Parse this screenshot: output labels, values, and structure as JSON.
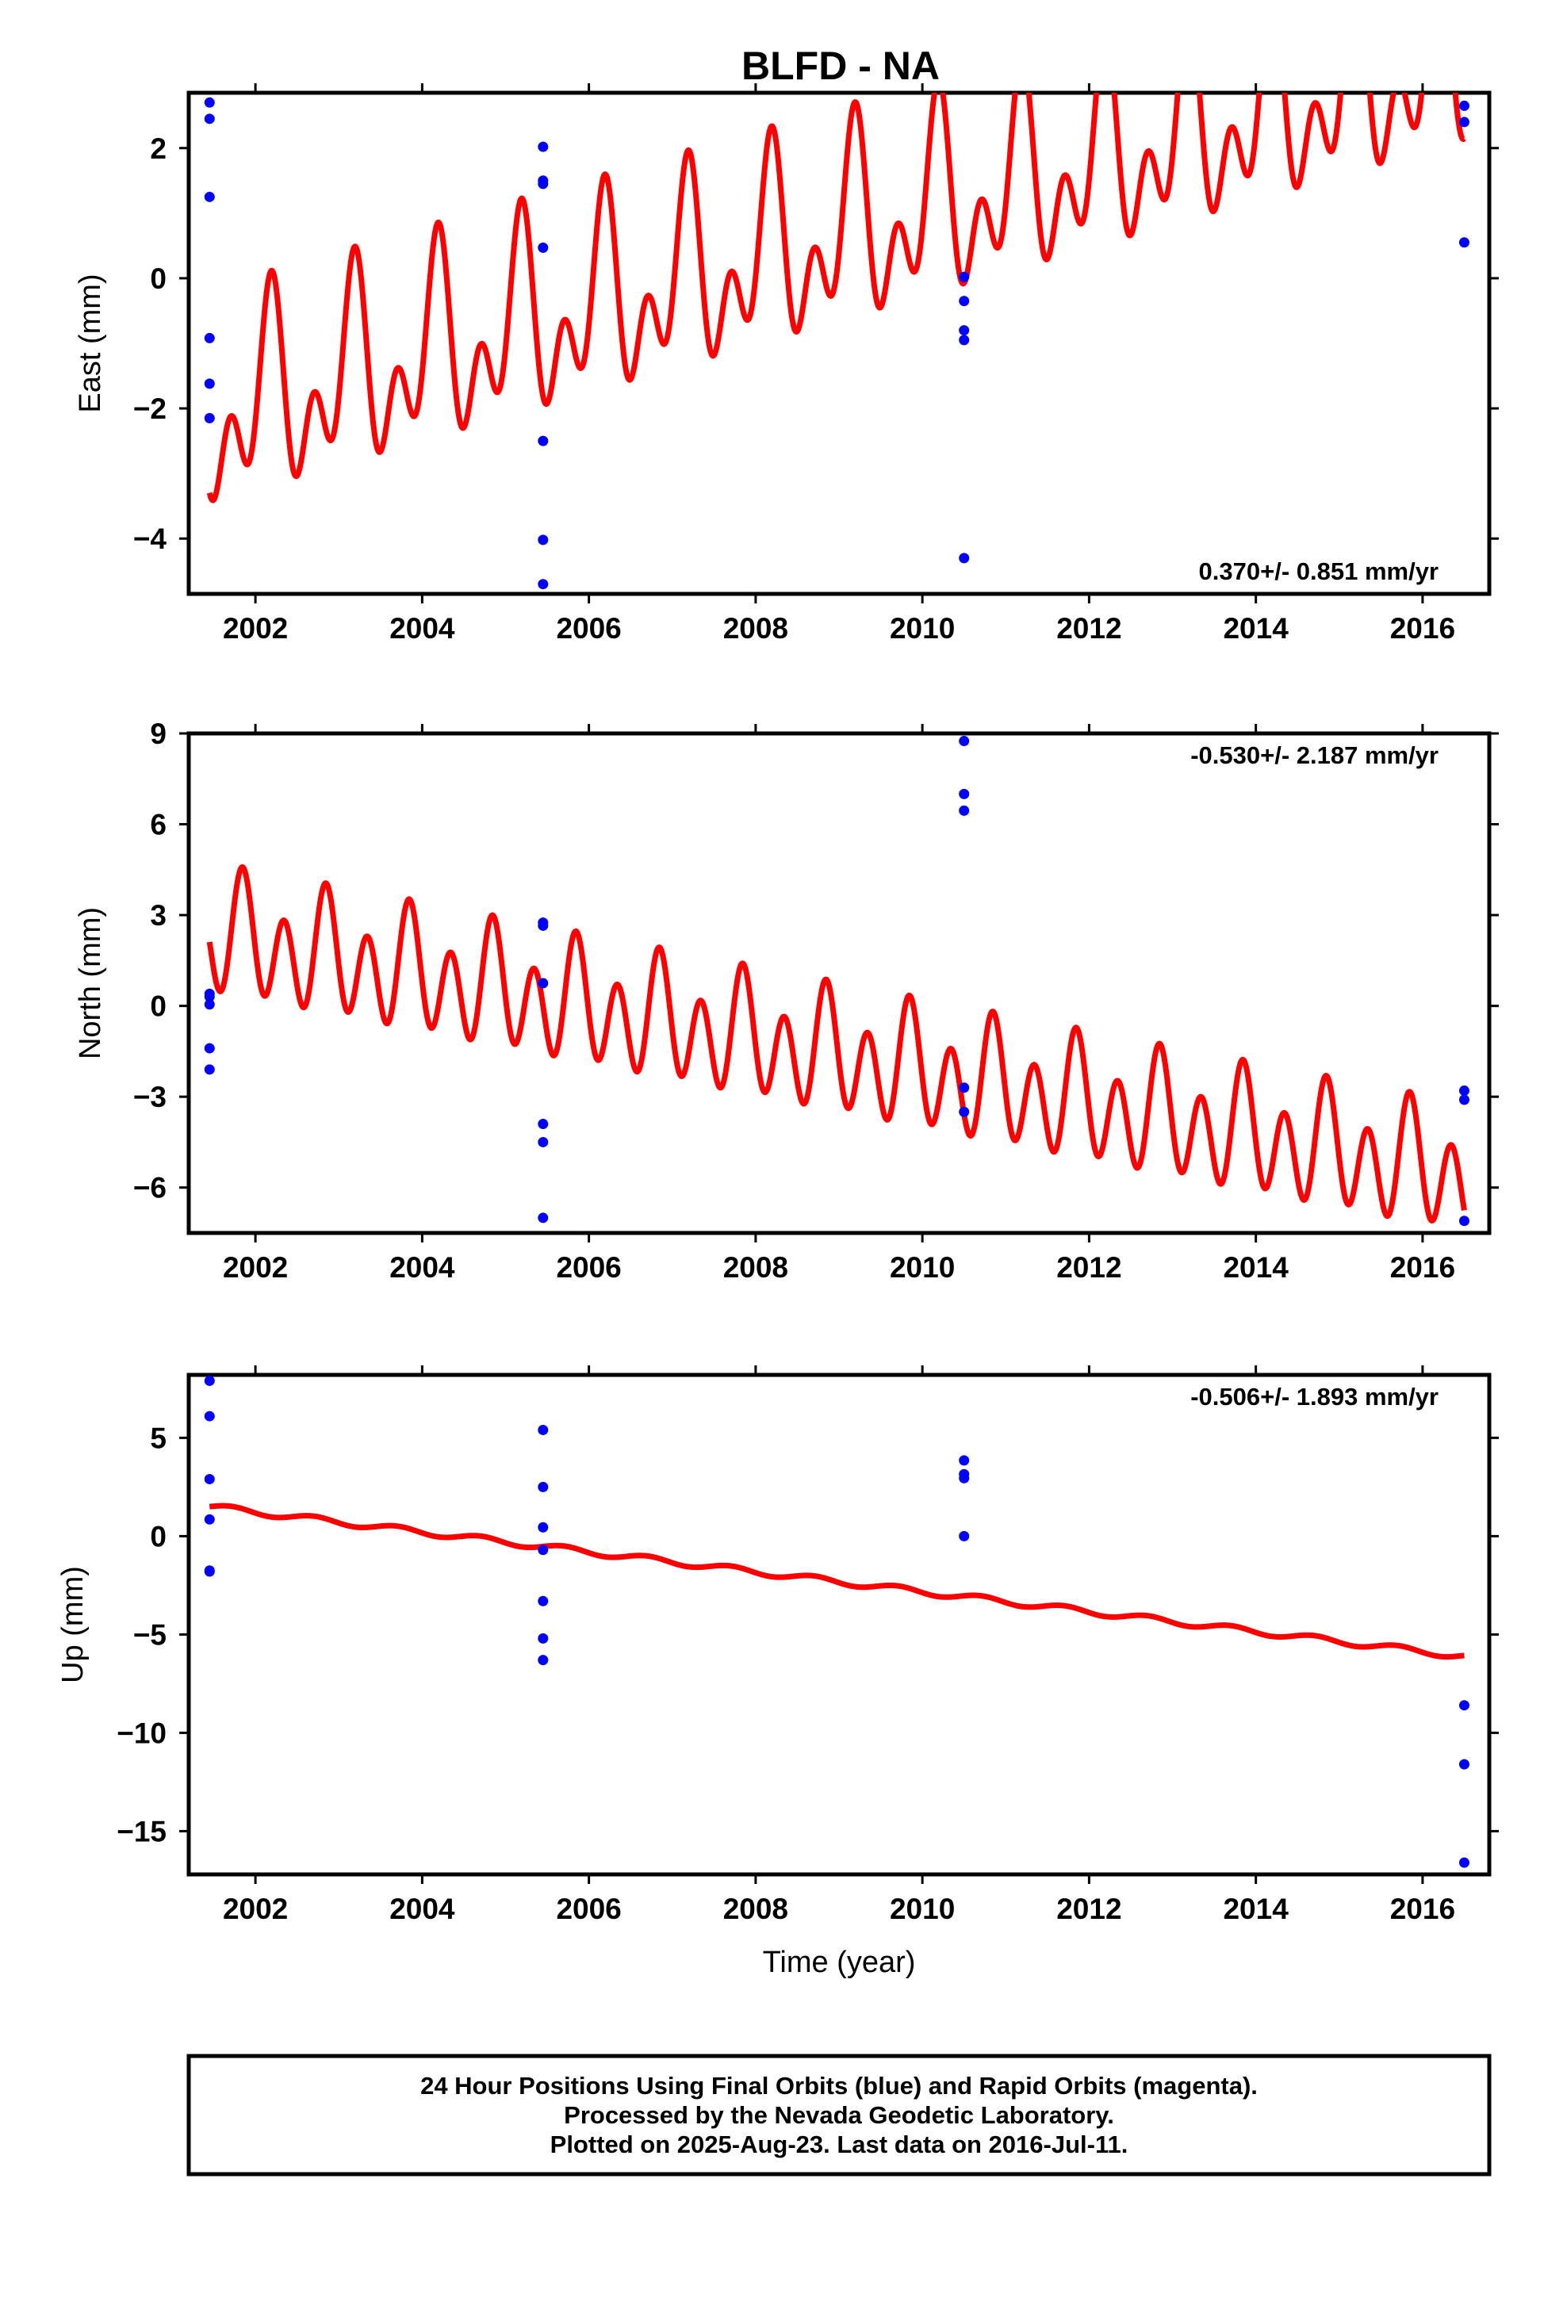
{
  "chart_data": {
    "title": "BLFD - NA",
    "type": "scatter",
    "xlabel": "Time (year)",
    "xlim": [
      2001.2,
      2016.8
    ],
    "xticks": [
      2002,
      2004,
      2006,
      2008,
      2010,
      2012,
      2014,
      2016
    ],
    "colors": {
      "final_orbits": "#0000ff",
      "model_fit": "#ff0000",
      "frame": "#000000"
    },
    "panels": [
      {
        "id": "east",
        "ylabel": "East (mm)",
        "ylim": [
          -4.85,
          2.85
        ],
        "yticks": [
          -4,
          -2,
          0,
          2
        ],
        "ytick_labels": [
          "−4",
          "−2",
          "0",
          "2"
        ],
        "rate_text": "0.370+/- 0.851 mm/yr",
        "rate_position": "bottom-right",
        "points": [
          [
            2001.45,
            2.7
          ],
          [
            2001.45,
            2.45
          ],
          [
            2001.45,
            1.25
          ],
          [
            2001.45,
            -0.92
          ],
          [
            2001.45,
            -1.62
          ],
          [
            2001.45,
            -2.15
          ],
          [
            2005.45,
            2.02
          ],
          [
            2005.45,
            1.5
          ],
          [
            2005.45,
            1.45
          ],
          [
            2005.45,
            0.47
          ],
          [
            2005.45,
            -2.5
          ],
          [
            2005.45,
            -4.02
          ],
          [
            2005.45,
            -4.7
          ],
          [
            2010.5,
            0.02
          ],
          [
            2010.5,
            -0.35
          ],
          [
            2010.5,
            -0.8
          ],
          [
            2010.5,
            -0.95
          ],
          [
            2010.5,
            -4.3
          ],
          [
            2016.5,
            2.65
          ],
          [
            2016.5,
            2.4
          ],
          [
            2016.5,
            0.55
          ]
        ],
        "fit": {
          "t0": 2001.45,
          "t1": 2016.5,
          "intercept": -2.14,
          "slope": 0.37,
          "amp_annual": 1.05,
          "phase_annual": 3.34,
          "amp_semiannual": 0.95,
          "phase_semiannual": -1.57
        }
      },
      {
        "id": "north",
        "ylabel": "North (mm)",
        "ylim": [
          -7.5,
          9.0
        ],
        "yticks": [
          -6,
          -3,
          0,
          3,
          6,
          9
        ],
        "ytick_labels": [
          "−6",
          "−3",
          "0",
          "3",
          "6",
          "9"
        ],
        "rate_text": "-0.530+/- 2.187 mm/yr",
        "rate_position": "top-right",
        "points": [
          [
            2001.45,
            0.4
          ],
          [
            2001.45,
            0.3
          ],
          [
            2001.45,
            0.05
          ],
          [
            2001.45,
            -1.4
          ],
          [
            2001.45,
            -2.1
          ],
          [
            2005.45,
            2.75
          ],
          [
            2005.45,
            2.65
          ],
          [
            2005.45,
            0.75
          ],
          [
            2005.45,
            -3.9
          ],
          [
            2005.45,
            -4.5
          ],
          [
            2005.45,
            -7.0
          ],
          [
            2010.5,
            8.75
          ],
          [
            2010.5,
            7.0
          ],
          [
            2010.5,
            6.45
          ],
          [
            2010.5,
            -2.7
          ],
          [
            2010.5,
            -3.5
          ],
          [
            2016.5,
            -2.8
          ],
          [
            2016.5,
            -3.1
          ],
          [
            2016.5,
            -7.1
          ]
        ],
        "fit": {
          "t0": 2001.45,
          "t1": 2016.5,
          "intercept": 2.35,
          "slope": -0.53,
          "amp_annual": 0.75,
          "phase_annual": -0.99,
          "amp_semiannual": 1.7,
          "phase_semiannual": 2.91
        }
      },
      {
        "id": "up",
        "ylabel": "Up (mm)",
        "ylim": [
          -17.2,
          8.2
        ],
        "yticks": [
          -15,
          -10,
          -5,
          0,
          5
        ],
        "ytick_labels": [
          "−15",
          "−10",
          "−5",
          "0",
          "5"
        ],
        "rate_text": "-0.506+/- 1.893 mm/yr",
        "rate_position": "top-right",
        "points": [
          [
            2001.45,
            7.9
          ],
          [
            2001.45,
            6.1
          ],
          [
            2001.45,
            2.9
          ],
          [
            2001.45,
            0.85
          ],
          [
            2001.45,
            -1.75
          ],
          [
            2001.45,
            -1.8
          ],
          [
            2005.45,
            5.4
          ],
          [
            2005.45,
            2.5
          ],
          [
            2005.45,
            0.45
          ],
          [
            2005.45,
            -0.7
          ],
          [
            2005.45,
            -3.3
          ],
          [
            2005.45,
            -5.2
          ],
          [
            2005.45,
            -6.3
          ],
          [
            2010.5,
            3.85
          ],
          [
            2010.5,
            3.15
          ],
          [
            2010.5,
            2.95
          ],
          [
            2010.5,
            0.0
          ],
          [
            2016.5,
            -8.6
          ],
          [
            2016.5,
            -11.6
          ],
          [
            2016.5,
            -16.6
          ]
        ],
        "fit": {
          "t0": 2001.45,
          "t1": 2016.5,
          "intercept": 1.5,
          "slope": -0.506,
          "amp_annual": 0.15,
          "phase_annual": 0.0,
          "amp_semiannual": 0.0,
          "phase_semiannual": 0.0
        }
      }
    ],
    "footer_lines": [
      "24 Hour Positions Using Final Orbits (blue) and Rapid Orbits (magenta).",
      "Processed by the Nevada Geodetic Laboratory.",
      "Plotted on 2025-Aug-23. Last data on 2016-Jul-11."
    ]
  }
}
